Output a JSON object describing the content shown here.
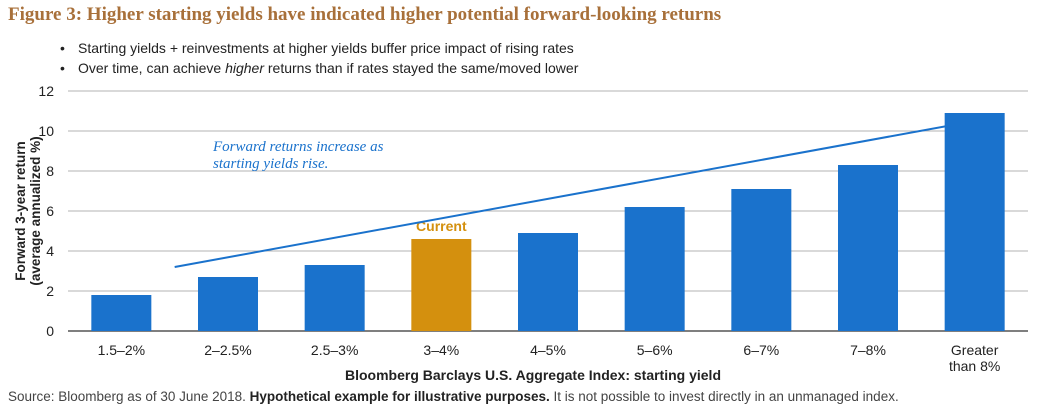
{
  "figure": {
    "title": "Figure 3: Higher starting yields have indicated higher potential forward-looking returns",
    "bullets": [
      {
        "before": "Starting yields + reinvestments at higher yields buffer price impact of rising rates",
        "em": "",
        "after": ""
      },
      {
        "before": "Over time, can achieve ",
        "em": "higher",
        "after": " returns than if rates stayed the same/moved lower"
      }
    ],
    "footer": {
      "source": "Source: Bloomberg as of 30 June 2018. ",
      "bold": "Hypothetical example for illustrative purposes.",
      "rest": "  It is not possible to invest directly in an unmanaged index."
    }
  },
  "chart_data": {
    "type": "bar",
    "categories": [
      [
        "1.5–2%"
      ],
      [
        "2–2.5%"
      ],
      [
        "2.5–3%"
      ],
      [
        "3–4%"
      ],
      [
        "4–5%"
      ],
      [
        "5–6%"
      ],
      [
        "6–7%"
      ],
      [
        "7–8%"
      ],
      [
        "Greater",
        "than 8%"
      ]
    ],
    "values": [
      1.8,
      2.7,
      3.3,
      4.6,
      4.9,
      6.2,
      7.1,
      8.3,
      10.9
    ],
    "highlight_index": 3,
    "highlight_label": "Current",
    "xlabel": "Bloomberg Barclays U.S. Aggregate Index: starting yield",
    "ylabel": [
      "Forward 3-year return",
      "(average annualized %)"
    ],
    "ylim": [
      0,
      12
    ],
    "yticks": [
      0,
      2,
      4,
      6,
      8,
      10,
      12
    ],
    "annotation": [
      "Forward returns increase as",
      "starting yields rise."
    ],
    "trend_arrow": {
      "from": [
        0.5,
        3.2
      ],
      "to": [
        8.0,
        10.5
      ]
    },
    "colors": {
      "bar": "#1a72cc",
      "highlight": "#d4900e",
      "arrow": "#1a72cc",
      "annotation": "#1a72cc",
      "highlight_label": "#d4900e"
    }
  }
}
